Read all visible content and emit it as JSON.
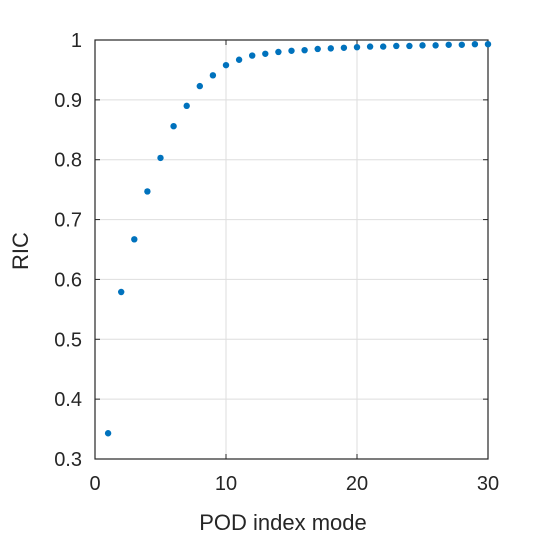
{
  "chart_data": {
    "type": "scatter",
    "title": "",
    "xlabel": "POD index mode",
    "ylabel": "RIC",
    "xlim": [
      0,
      30
    ],
    "ylim": [
      0.3,
      1
    ],
    "xticks": [
      0,
      10,
      20,
      30
    ],
    "yticks": [
      0.3,
      0.4,
      0.5,
      0.6,
      0.7,
      0.8,
      0.9,
      1
    ],
    "xtick_labels": [
      "0",
      "10",
      "20",
      "30"
    ],
    "ytick_labels": [
      "0.3",
      "0.4",
      "0.5",
      "0.6",
      "0.7",
      "0.8",
      "0.9",
      "1"
    ],
    "grid": true,
    "series": [
      {
        "color": "#0072BD",
        "x": [
          1,
          2,
          3,
          4,
          5,
          6,
          7,
          8,
          9,
          10,
          11,
          12,
          13,
          14,
          15,
          16,
          17,
          18,
          19,
          20,
          21,
          22,
          23,
          24,
          25,
          26,
          27,
          28,
          29,
          30
        ],
        "y": [
          0.343,
          0.579,
          0.667,
          0.747,
          0.803,
          0.856,
          0.89,
          0.923,
          0.941,
          0.958,
          0.967,
          0.974,
          0.977,
          0.98,
          0.982,
          0.983,
          0.985,
          0.986,
          0.987,
          0.988,
          0.989,
          0.989,
          0.99,
          0.99,
          0.991,
          0.991,
          0.992,
          0.992,
          0.993,
          0.993
        ]
      }
    ]
  }
}
